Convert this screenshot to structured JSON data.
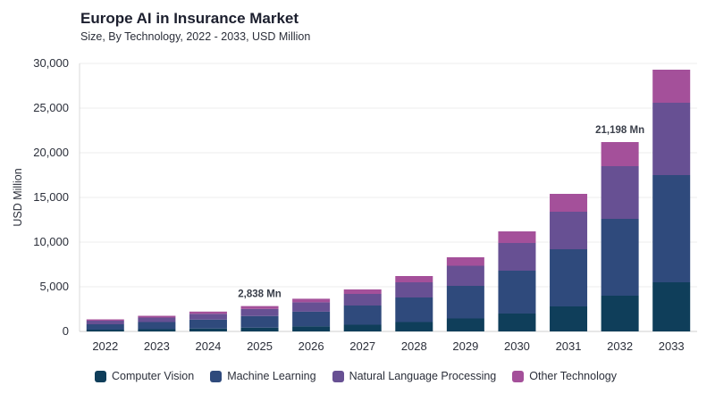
{
  "header": {
    "title": "Europe AI in Insurance Market",
    "subtitle": "Size, By Technology, 2022 - 2033, USD Million"
  },
  "chart_data": {
    "type": "bar",
    "stacked": true,
    "title": "Europe AI in Insurance Market",
    "subtitle": "Size, By Technology, 2022 - 2033, USD Million",
    "xlabel": "",
    "ylabel": "USD Million",
    "ylim": [
      0,
      30000
    ],
    "yticks": [
      0,
      5000,
      10000,
      15000,
      20000,
      25000,
      30000
    ],
    "ytick_labels": [
      "0",
      "5,000",
      "10,000",
      "15,000",
      "20,000",
      "25,000",
      "30,000"
    ],
    "categories": [
      "2022",
      "2023",
      "2024",
      "2025",
      "2026",
      "2027",
      "2028",
      "2029",
      "2030",
      "2031",
      "2032",
      "2033"
    ],
    "series": [
      {
        "name": "Computer Vision",
        "color": "#0f3e5a",
        "values": [
          200,
          250,
          320,
          420,
          560,
          750,
          1050,
          1450,
          2000,
          2800,
          4000,
          5500
        ]
      },
      {
        "name": "Machine Learning",
        "color": "#2f4a7c",
        "values": [
          600,
          800,
          1000,
          1300,
          1650,
          2150,
          2750,
          3650,
          4800,
          6400,
          8600,
          12000
        ]
      },
      {
        "name": "Natural Language Processing",
        "color": "#675093",
        "values": [
          400,
          500,
          650,
          800,
          1050,
          1300,
          1700,
          2250,
          3100,
          4200,
          5900,
          8100
        ]
      },
      {
        "name": "Other Technology",
        "color": "#a4509a",
        "values": [
          150,
          200,
          250,
          318,
          400,
          500,
          700,
          950,
          1300,
          2000,
          2698,
          3700
        ]
      }
    ],
    "annotations": [
      {
        "category": "2025",
        "text": "2,838 Mn"
      },
      {
        "category": "2032",
        "text": "21,198 Mn"
      }
    ],
    "grid": true,
    "legend": "bottom"
  }
}
